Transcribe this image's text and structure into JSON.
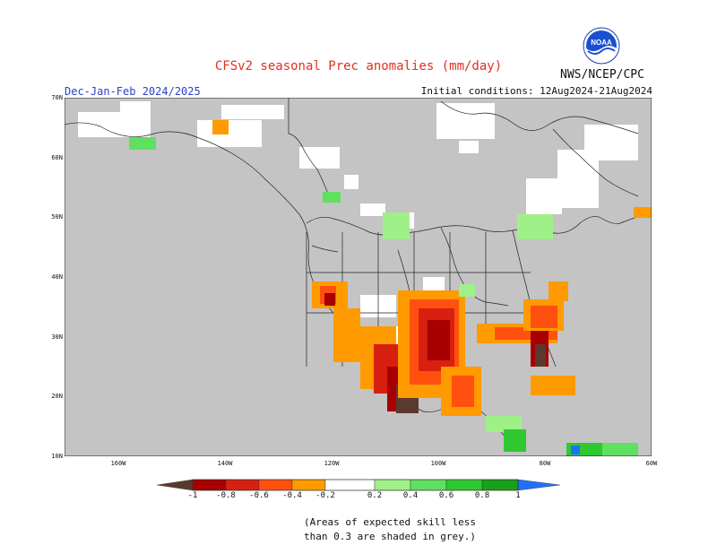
{
  "title": "CFSv2 seasonal Prec anomalies (mm/day)",
  "agency": "NWS/NCEP/CPC",
  "season": "Dec-Jan-Feb 2024/2025",
  "initial_conditions": "Initial conditions: 12Aug2024-21Aug2024",
  "logo": {
    "text": "NOAA",
    "icon": "noaa-logo-icon"
  },
  "lat_labels": [
    "70N",
    "60N",
    "50N",
    "40N",
    "30N",
    "20N",
    "10N"
  ],
  "lon_labels": [
    "160W",
    "140W",
    "120W",
    "100W",
    "80W",
    "60W"
  ],
  "colorbar": {
    "labels": [
      "-1",
      "-0.8",
      "-0.6",
      "-0.4",
      "-0.2",
      "0.2",
      "0.4",
      "0.6",
      "0.8",
      "1"
    ],
    "colors": [
      "#5a3a2e",
      "#a80000",
      "#d82010",
      "#ff5010",
      "#ff9a00",
      "#ffffff",
      "#a0f08a",
      "#60e060",
      "#30c830",
      "#18a018",
      "#2070ff"
    ]
  },
  "note_lines": [
    "(Areas of expected skill less",
    "than 0.3 are shaded in grey.)"
  ],
  "colors": {
    "grey": "#c4c4c4",
    "title": "#e0301e",
    "season": "#2a40c8"
  }
}
